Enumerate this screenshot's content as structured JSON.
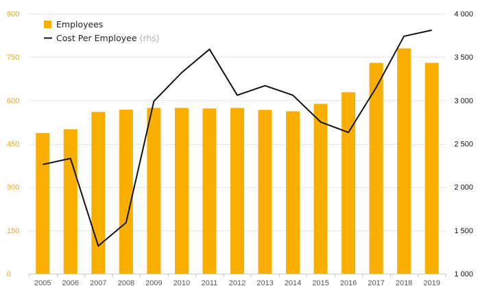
{
  "chart_data": {
    "type": "bar",
    "categories": [
      "2005",
      "2006",
      "2007",
      "2008",
      "2009",
      "2010",
      "2011",
      "2012",
      "2013",
      "2014",
      "2015",
      "2016",
      "2017",
      "2018",
      "2019"
    ],
    "series": [
      {
        "name": "Employees",
        "type": "bar",
        "axis": "left",
        "color": "#f9ae00",
        "values": [
          487,
          500,
          560,
          568,
          574,
          574,
          572,
          574,
          567,
          562,
          588,
          628,
          730,
          780,
          730
        ]
      },
      {
        "name": "Cost Per Employee",
        "type": "line",
        "axis": "right",
        "color": "#111111",
        "values": [
          2260,
          2330,
          1320,
          1590,
          2990,
          3320,
          3590,
          3060,
          3170,
          3060,
          2750,
          2630,
          3150,
          3740,
          3810
        ]
      }
    ],
    "legend": {
      "position": "top-left",
      "items": [
        {
          "label": "Employees",
          "suffix": ""
        },
        {
          "label": "Cost Per Employee",
          "suffix": " (rhs)"
        }
      ]
    },
    "y_left": {
      "ylim": [
        0,
        900
      ],
      "ticks": [
        0,
        150,
        300,
        450,
        600,
        750,
        900
      ],
      "tick_labels": [
        "0",
        "150",
        "300",
        "450",
        "600",
        "750",
        "900"
      ],
      "color": "#f5a800"
    },
    "y_right": {
      "ylim": [
        1000,
        4000
      ],
      "ticks": [
        1000,
        1500,
        2000,
        2500,
        3000,
        3500,
        4000
      ],
      "tick_labels": [
        "1 000",
        "1 500",
        "2 000",
        "2 500",
        "3 000",
        "3 500",
        "4 000"
      ],
      "color": "#111111"
    },
    "grid": true,
    "title": "",
    "xlabel": "",
    "ylabel": ""
  }
}
